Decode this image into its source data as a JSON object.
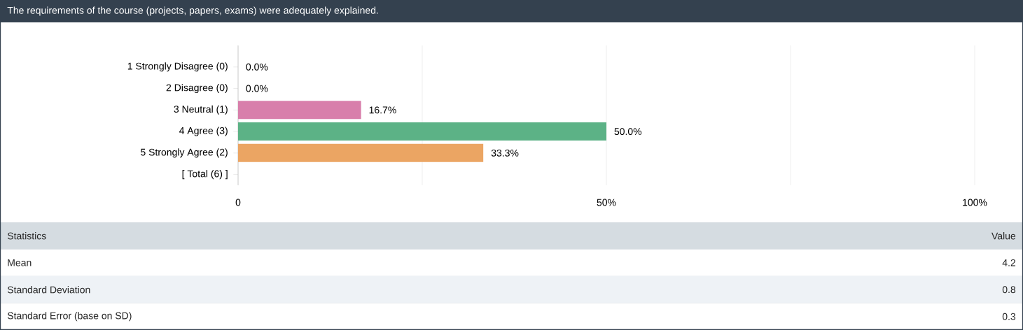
{
  "chart_data": {
    "type": "bar",
    "orientation": "horizontal",
    "title": "The requirements of the course (projects, papers, exams) were adequately explained.",
    "categories": [
      "1 Strongly Disagree (0)",
      "2 Disagree (0)",
      "3 Neutral (1)",
      "4 Agree (3)",
      "5 Strongly Agree (2)",
      "[ Total (6) ]"
    ],
    "values": [
      0,
      0,
      16.7,
      50,
      33.3,
      null
    ],
    "colors": [
      "#4e79a7",
      "#4e79a7",
      "#d87fab",
      "#5cb286",
      "#eba563",
      "#999999"
    ],
    "value_labels": [
      "0.0%",
      "0.0%",
      "16.7%",
      "50.0%",
      "33.3%",
      null
    ],
    "xlim": [
      0,
      100
    ],
    "xticks": [
      0,
      {
        "value": 25,
        "label": null
      },
      {
        "value": 50,
        "label": "50%"
      },
      {
        "value": 75,
        "label": null
      },
      {
        "value": 100,
        "label": "100%"
      }
    ],
    "grid": "x",
    "annotations": [
      "Statistics",
      "Value",
      "Mean",
      "4.2",
      "Standard Deviation",
      "0.8",
      "Standard Error (base on SD)",
      "0.3"
    ]
  }
}
